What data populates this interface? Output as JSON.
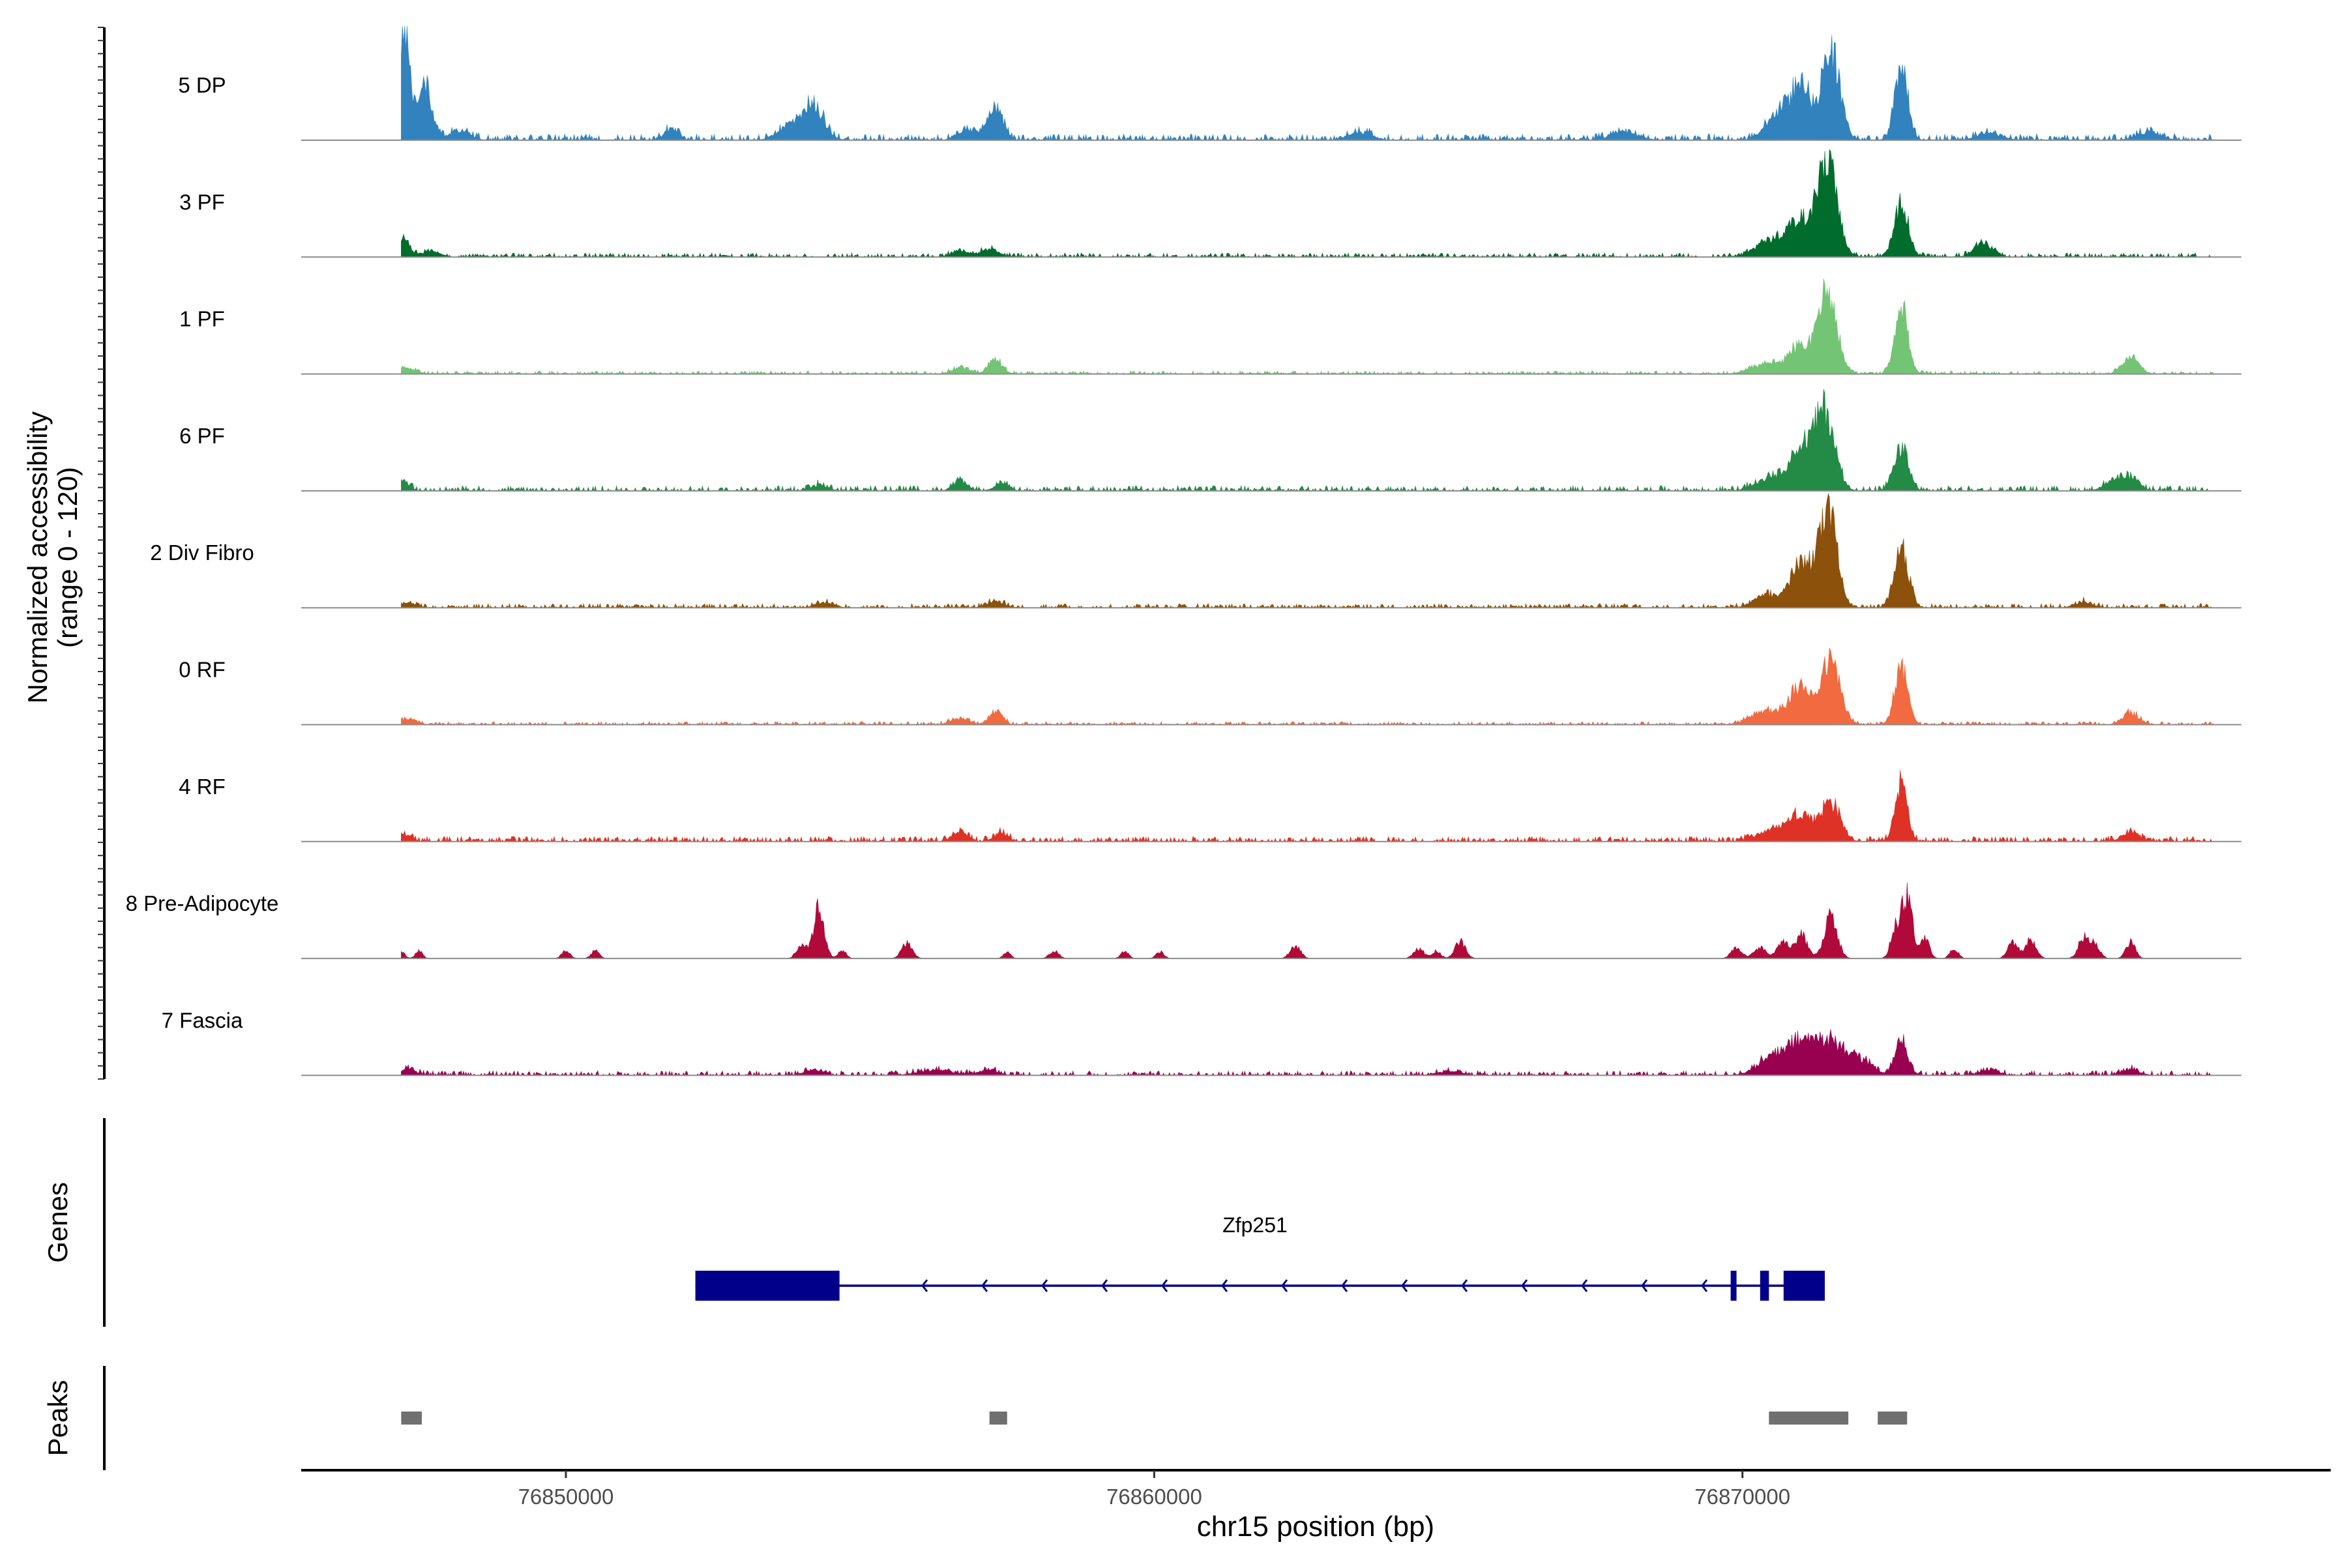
{
  "chart_data": {
    "type": "area",
    "title": "",
    "xlabel": "chr15 position (bp)",
    "ylabel_line1": "Normalized accessibility",
    "ylabel_line2": "(range 0 - 120)",
    "xlim": [
      76845500,
      76880000
    ],
    "ylim": [
      0,
      120
    ],
    "x_ticks": [
      76850000,
      76860000,
      76870000
    ],
    "x_tick_labels": [
      "76850000",
      "76860000",
      "76870000"
    ],
    "coverage_range": [
      76847200,
      76878000
    ],
    "tracks": [
      {
        "name": "5 DP",
        "color": "#3182bd",
        "peaks": [
          [
            76847250,
            118,
            90
          ],
          [
            76847600,
            60,
            120
          ],
          [
            76848200,
            10,
            160
          ],
          [
            76851800,
            12,
            110
          ],
          [
            76854200,
            35,
            180
          ],
          [
            76853800,
            14,
            200
          ],
          [
            76857300,
            34,
            130
          ],
          [
            76856800,
            10,
            150
          ],
          [
            76863500,
            8,
            200
          ],
          [
            76868000,
            9,
            220
          ],
          [
            76870600,
            25,
            200
          ],
          [
            76871000,
            58,
            170
          ],
          [
            76871500,
            95,
            150
          ],
          [
            76872700,
            75,
            110
          ],
          [
            76874200,
            8,
            200
          ],
          [
            76876900,
            7,
            200
          ]
        ],
        "noise": 3
      },
      {
        "name": "3 PF",
        "color": "#006d2c",
        "peaks": [
          [
            76847250,
            18,
            100
          ],
          [
            76847700,
            6,
            150
          ],
          [
            76857200,
            8,
            150
          ],
          [
            76856700,
            6,
            150
          ],
          [
            76870500,
            18,
            250
          ],
          [
            76871000,
            38,
            200
          ],
          [
            76871450,
            100,
            160
          ],
          [
            76872700,
            55,
            120
          ],
          [
            76874100,
            14,
            160
          ]
        ],
        "noise": 2
      },
      {
        "name": "1 PF",
        "color": "#74c476",
        "peaks": [
          [
            76847300,
            6,
            150
          ],
          [
            76856700,
            6,
            150
          ],
          [
            76857300,
            14,
            120
          ],
          [
            76870400,
            10,
            250
          ],
          [
            76871000,
            30,
            200
          ],
          [
            76871450,
            85,
            150
          ],
          [
            76872700,
            72,
            110
          ],
          [
            76876600,
            16,
            140
          ]
        ],
        "noise": 1.5
      },
      {
        "name": "6 PF",
        "color": "#238b45",
        "peaks": [
          [
            76847200,
            10,
            120
          ],
          [
            76854300,
            6,
            150
          ],
          [
            76856700,
            10,
            120
          ],
          [
            76857400,
            8,
            120
          ],
          [
            76870500,
            14,
            250
          ],
          [
            76871000,
            40,
            200
          ],
          [
            76871400,
            80,
            170
          ],
          [
            76872700,
            45,
            120
          ],
          [
            76876300,
            10,
            150
          ],
          [
            76876600,
            12,
            140
          ]
        ],
        "noise": 2.5
      },
      {
        "name": "2 Div Fibro",
        "color": "#8c510a",
        "peaks": [
          [
            76847300,
            5,
            150
          ],
          [
            76854400,
            5,
            150
          ],
          [
            76857300,
            6,
            150
          ],
          [
            76870400,
            14,
            200
          ],
          [
            76871000,
            48,
            180
          ],
          [
            76871450,
            105,
            150
          ],
          [
            76872700,
            62,
            120
          ],
          [
            76875800,
            6,
            150
          ]
        ],
        "noise": 2
      },
      {
        "name": "0 RF",
        "color": "#f16a40",
        "peaks": [
          [
            76847300,
            6,
            150
          ],
          [
            76856700,
            6,
            150
          ],
          [
            76857300,
            14,
            110
          ],
          [
            76870400,
            14,
            250
          ],
          [
            76871000,
            38,
            200
          ],
          [
            76871500,
            65,
            160
          ],
          [
            76872700,
            58,
            110
          ],
          [
            76876600,
            12,
            140
          ]
        ],
        "noise": 1.5
      },
      {
        "name": "4 RF",
        "color": "#de3226",
        "peaks": [
          [
            76847250,
            8,
            120
          ],
          [
            76856700,
            10,
            120
          ],
          [
            76857400,
            10,
            110
          ],
          [
            76870500,
            12,
            250
          ],
          [
            76871000,
            28,
            200
          ],
          [
            76871500,
            40,
            160
          ],
          [
            76872700,
            62,
            100
          ],
          [
            76876600,
            10,
            140
          ]
        ],
        "noise": 2.5
      },
      {
        "name": "8 Pre-Adipocyte",
        "color": "#b0093a",
        "peaks": [
          [
            76847200,
            8,
            60
          ],
          [
            76847500,
            8,
            60
          ],
          [
            76850000,
            8,
            70
          ],
          [
            76850500,
            8,
            70
          ],
          [
            76854000,
            15,
            80
          ],
          [
            76854300,
            52,
            90
          ],
          [
            76854700,
            8,
            70
          ],
          [
            76855800,
            16,
            90
          ],
          [
            76857500,
            7,
            60
          ],
          [
            76858300,
            8,
            80
          ],
          [
            76859500,
            7,
            70
          ],
          [
            76860100,
            7,
            70
          ],
          [
            76862400,
            13,
            90
          ],
          [
            76864500,
            10,
            90
          ],
          [
            76864800,
            8,
            70
          ],
          [
            76865200,
            18,
            90
          ],
          [
            76869900,
            11,
            90
          ],
          [
            76870300,
            12,
            100
          ],
          [
            76870700,
            18,
            100
          ],
          [
            76871000,
            25,
            100
          ],
          [
            76871500,
            45,
            110
          ],
          [
            76872600,
            30,
            80
          ],
          [
            76872800,
            65,
            90
          ],
          [
            76873100,
            20,
            80
          ],
          [
            76873600,
            10,
            70
          ],
          [
            76874600,
            16,
            90
          ],
          [
            76874900,
            20,
            90
          ],
          [
            76875800,
            22,
            90
          ],
          [
            76876000,
            14,
            80
          ],
          [
            76876600,
            17,
            80
          ]
        ],
        "noise": 0
      },
      {
        "name": "7 Fascia",
        "color": "#980050",
        "peaks": [
          [
            76847300,
            6,
            150
          ],
          [
            76854200,
            6,
            150
          ],
          [
            76856300,
            5,
            300
          ],
          [
            76857200,
            6,
            150
          ],
          [
            76865000,
            4,
            200
          ],
          [
            76870500,
            16,
            250
          ],
          [
            76871000,
            30,
            250
          ],
          [
            76871500,
            32,
            250
          ],
          [
            76872000,
            14,
            200
          ],
          [
            76872700,
            40,
            110
          ],
          [
            76874200,
            6,
            150
          ],
          [
            76876600,
            6,
            150
          ]
        ],
        "noise": 2.2
      }
    ],
    "genes_label": "Genes",
    "gene": {
      "name": "Zfp251",
      "strand": "-",
      "start": 76852200,
      "end": 76871400,
      "exons": [
        [
          76852200,
          76854650
        ],
        [
          76869800,
          76869900
        ],
        [
          76870300,
          76870450
        ],
        [
          76870700,
          76871400
        ]
      ]
    },
    "peaks_label": "Peaks",
    "peak_regions": [
      [
        76847200,
        76847550
      ],
      [
        76857200,
        76857500
      ],
      [
        76870450,
        76871800
      ],
      [
        76872300,
        76872800
      ]
    ]
  }
}
